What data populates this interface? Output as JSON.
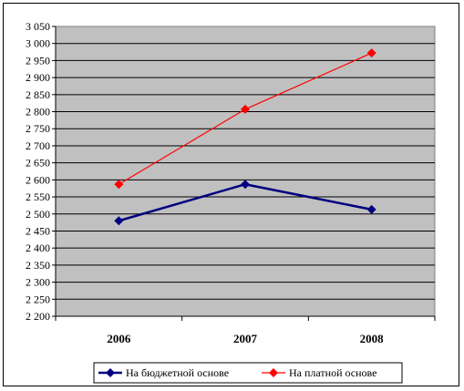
{
  "chart_data": {
    "type": "line",
    "categories": [
      "2006",
      "2007",
      "2008"
    ],
    "series": [
      {
        "name": "На бюджетной основе",
        "color": "#000080",
        "marker": "diamond",
        "values": [
          2480,
          2587,
          2513
        ]
      },
      {
        "name": "На платной основе",
        "color": "#ff0000",
        "marker": "diamond",
        "values": [
          2587,
          2807,
          2972
        ]
      }
    ],
    "ylim": [
      2200,
      3050
    ],
    "ystep": 50,
    "ytick_labels": [
      "2 200",
      "2 250",
      "2 300",
      "2 350",
      "2 400",
      "2 450",
      "2 500",
      "2 550",
      "2 600",
      "2 650",
      "2 700",
      "2 750",
      "2 800",
      "2 850",
      "2 900",
      "2 950",
      "3 000",
      "3 050"
    ],
    "plot_background": "#c0c0c0",
    "grid": true,
    "legend_position": "bottom"
  }
}
